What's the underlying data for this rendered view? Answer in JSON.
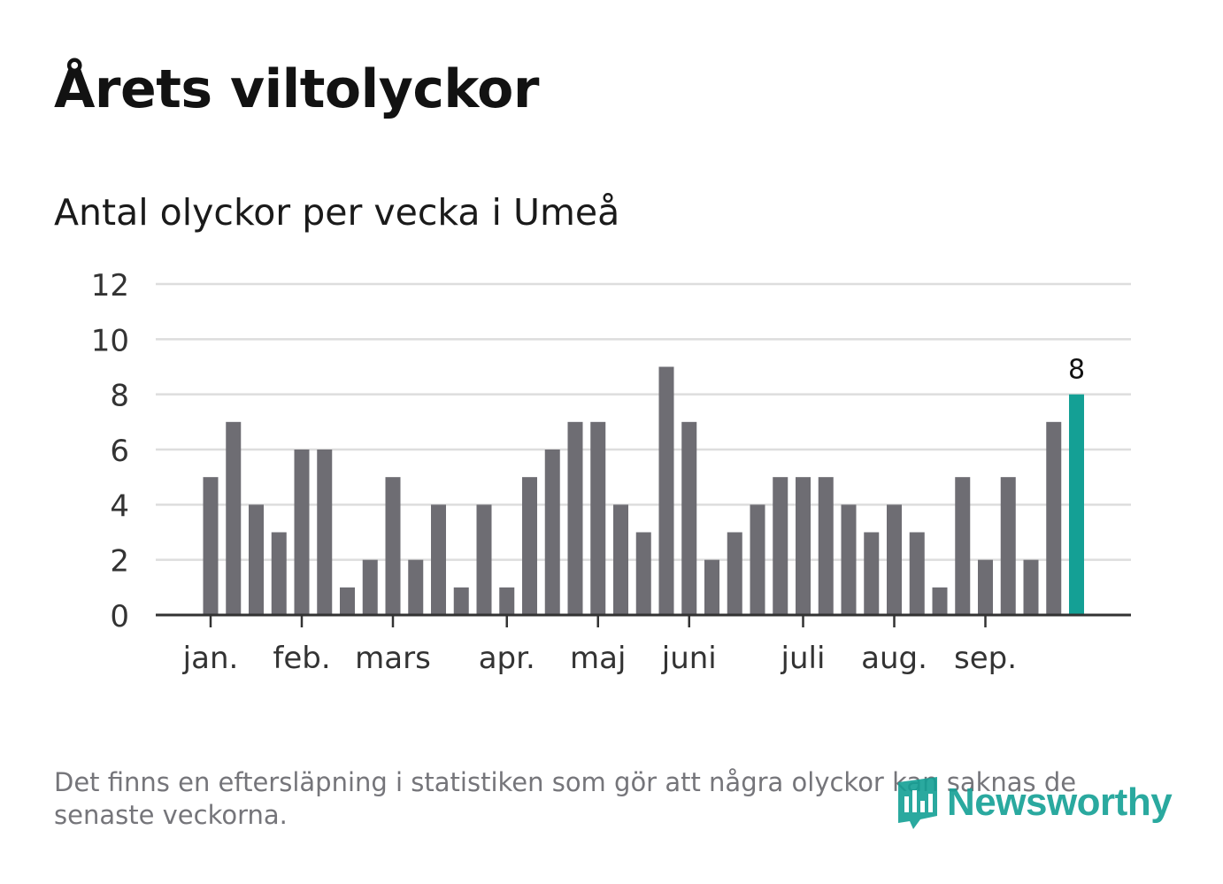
{
  "header": {
    "title": "Årets viltolyckor"
  },
  "chart_data": {
    "type": "bar",
    "title": "Antal olyckor per vecka i Umeå",
    "xlabel": "",
    "ylabel": "",
    "ylim": [
      0,
      12
    ],
    "yticks": [
      "0",
      "2",
      "4",
      "6",
      "8",
      "10",
      "12"
    ],
    "grid": true,
    "months": [
      {
        "label": "jan.",
        "week": 1
      },
      {
        "label": "feb.",
        "week": 5
      },
      {
        "label": "mars",
        "week": 9
      },
      {
        "label": "apr.",
        "week": 14
      },
      {
        "label": "maj",
        "week": 18
      },
      {
        "label": "juni",
        "week": 22
      },
      {
        "label": "juli",
        "week": 27
      },
      {
        "label": "aug.",
        "week": 31
      },
      {
        "label": "sep.",
        "week": 35
      }
    ],
    "weeks": [
      1,
      2,
      3,
      4,
      5,
      6,
      7,
      8,
      9,
      10,
      11,
      12,
      13,
      14,
      15,
      16,
      17,
      18,
      19,
      20,
      21,
      22,
      23,
      24,
      25,
      26,
      27,
      28,
      29,
      30,
      31,
      32,
      33,
      34,
      35,
      36,
      37,
      38,
      39
    ],
    "values": [
      5,
      7,
      4,
      3,
      6,
      6,
      1,
      2,
      5,
      2,
      4,
      1,
      4,
      1,
      5,
      6,
      7,
      7,
      4,
      3,
      9,
      7,
      2,
      3,
      4,
      5,
      5,
      5,
      4,
      3,
      4,
      3,
      1,
      5,
      2,
      5,
      2,
      7,
      8
    ],
    "highlight_last": true,
    "highlight_label": "8",
    "colors": {
      "bar": "#6e6d73",
      "highlight": "#14a095",
      "grid": "#dddddd",
      "axis": "#333333",
      "tick_text": "#333333"
    }
  },
  "footer": {
    "note": "Det finns en eftersläpning i statistiken som gör att några olyckor kan saknas de senaste veckorna.",
    "brand": "Newsworthy"
  }
}
